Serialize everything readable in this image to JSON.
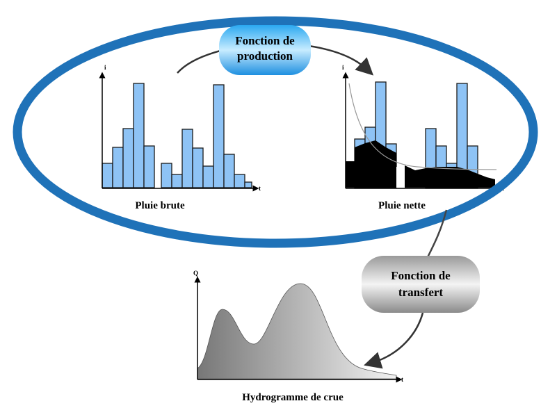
{
  "production_box": {
    "lines": [
      "Fonction de",
      "production"
    ]
  },
  "transfer_box": {
    "lines": [
      "Fonction de",
      "transfert"
    ]
  },
  "panels": [
    {
      "label": "Pluie brute",
      "y_axis": "i",
      "x_axis": "t"
    },
    {
      "label": "Pluie nette",
      "y_axis": "i",
      "x_axis": "t"
    },
    {
      "label": "Hydrogramme de crue",
      "y_axis": "Q",
      "x_axis": "t"
    }
  ]
}
